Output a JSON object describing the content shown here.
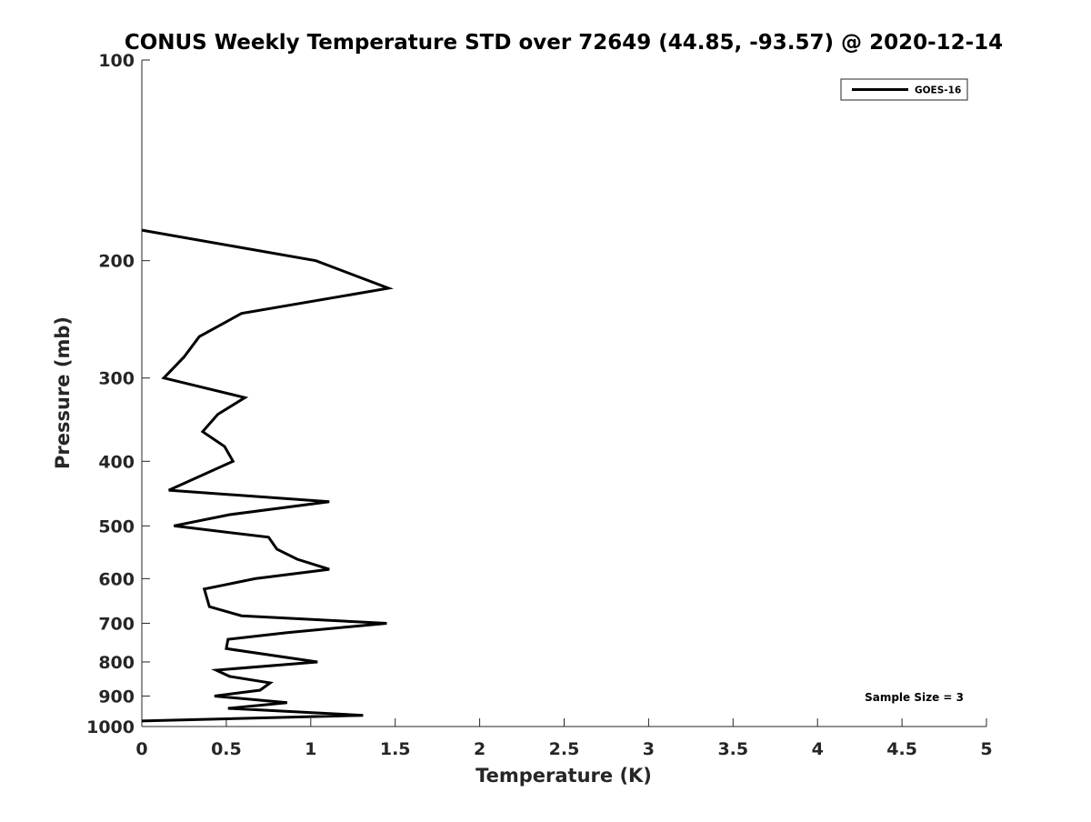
{
  "chart_data": {
    "type": "line",
    "title": "CONUS Weekly Temperature STD over 72649 (44.85, -93.57) @ 2020-12-14",
    "xlabel": "Temperature (K)",
    "ylabel": "Pressure (mb)",
    "xlim": [
      0,
      5
    ],
    "ylim": [
      100,
      1000
    ],
    "yscale": "log",
    "yreversed": true,
    "xticks": [
      "0",
      "0.5",
      "1",
      "1.5",
      "2",
      "2.5",
      "3",
      "3.5",
      "4",
      "4.5",
      "5"
    ],
    "xtick_values": [
      0,
      0.5,
      1,
      1.5,
      2,
      2.5,
      3,
      3.5,
      4,
      4.5,
      5
    ],
    "yticks": [
      "100",
      "200",
      "300",
      "400",
      "500",
      "600",
      "700",
      "800",
      "900",
      "1000"
    ],
    "ytick_values": [
      100,
      200,
      300,
      400,
      500,
      600,
      700,
      800,
      900,
      1000
    ],
    "grid": false,
    "legend": {
      "position": "top-right",
      "entries": [
        "GOES-16"
      ]
    },
    "annotation": "Sample Size = 3",
    "series": [
      {
        "name": "GOES-16",
        "color": "#000000",
        "x": [
          0,
          1.03,
          1.46,
          0.59,
          0.34,
          0.25,
          0.13,
          0.61,
          0.45,
          0.36,
          0.49,
          0.54,
          0.16,
          1.11,
          0.52,
          0.19,
          0.75,
          0.8,
          0.92,
          1.11,
          0.67,
          0.37,
          0.4,
          0.59,
          1.45,
          0.86,
          0.51,
          0.5,
          1.04,
          0.44,
          0.52,
          0.76,
          0.7,
          0.43,
          0.86,
          0.51,
          1.31,
          0
        ],
        "y": [
          180,
          200,
          220,
          240,
          260,
          279,
          300,
          321,
          340,
          361,
          380,
          400,
          442,
          460,
          481,
          500,
          520,
          542,
          561,
          581,
          600,
          622,
          661,
          682,
          700,
          723,
          740,
          764,
          800,
          823,
          841,
          860,
          882,
          900,
          921,
          939,
          962,
          981
        ]
      }
    ]
  }
}
